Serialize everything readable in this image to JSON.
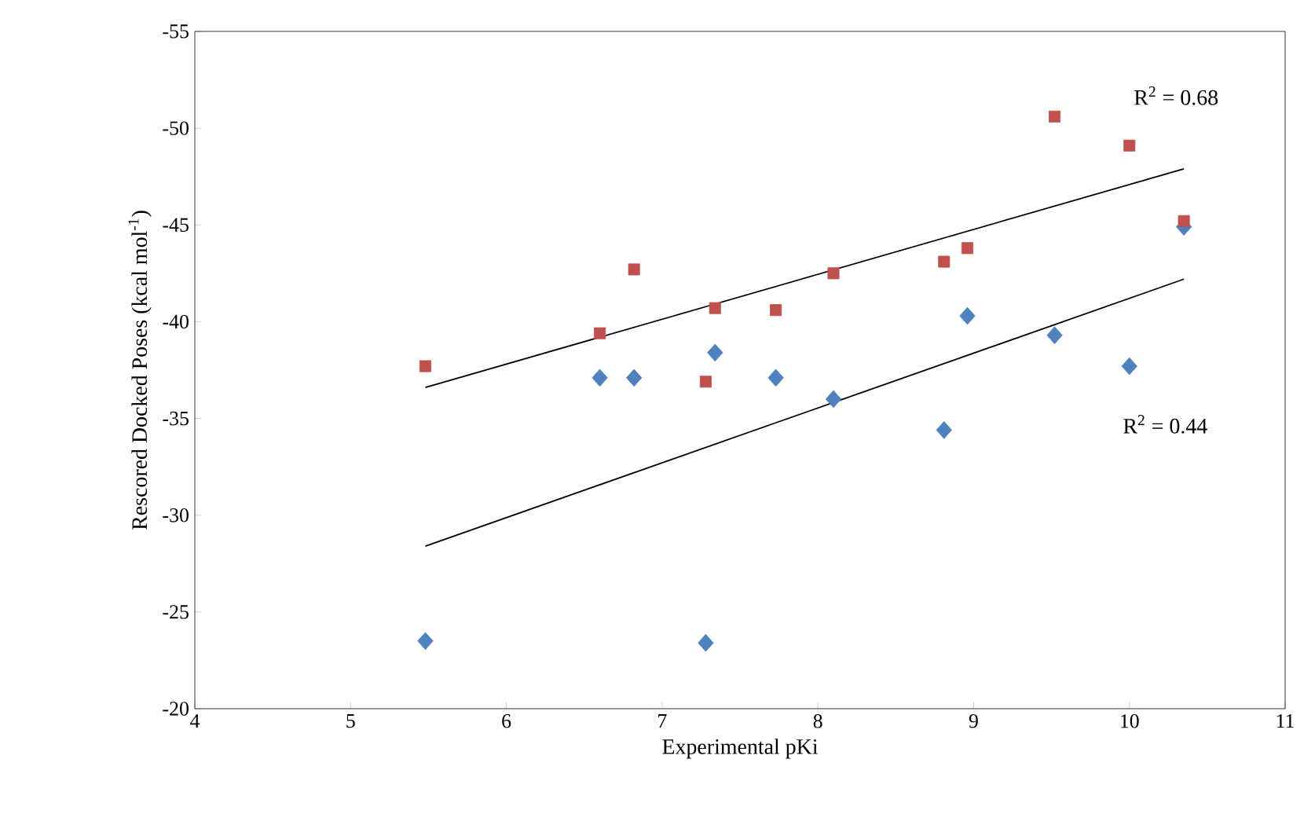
{
  "chart_data": {
    "type": "scatter",
    "xlabel": "Experimental pKi",
    "ylabel": "Rescored Docked Poses (kcal mol$^{-1}$)",
    "xlim": [
      4,
      11
    ],
    "xticks": [
      4,
      5,
      6,
      7,
      8,
      9,
      10,
      11
    ],
    "ylim": [
      -20,
      -55
    ],
    "yticks": [
      -20,
      -25,
      -30,
      -35,
      -40,
      -45,
      -50,
      -55
    ],
    "grid": false,
    "series": [
      {
        "marker": "diamond",
        "color": "#4f81bd",
        "x": [
          5.48,
          6.6,
          6.82,
          7.28,
          7.34,
          7.73,
          8.1,
          8.81,
          8.96,
          9.52,
          10.0,
          10.35
        ],
        "values": [
          -23.5,
          -37.1,
          -37.1,
          -23.4,
          -38.4,
          -37.1,
          -36.0,
          -34.4,
          -40.3,
          -39.3,
          -37.7,
          -44.9
        ]
      },
      {
        "marker": "square",
        "color": "#c0504d",
        "x": [
          5.48,
          6.6,
          6.82,
          7.28,
          7.34,
          7.73,
          8.1,
          8.81,
          8.96,
          9.52,
          10.0,
          10.35
        ],
        "values": [
          -37.7,
          -39.4,
          -42.7,
          -36.9,
          -40.7,
          -40.6,
          -42.5,
          -43.1,
          -43.8,
          -50.6,
          -49.1,
          -45.2
        ]
      },
      {
        "type": "line",
        "marker": "none",
        "color": "#000000",
        "x": [
          5.48,
          10.35
        ],
        "values": [
          -36.6,
          -47.9
        ]
      },
      {
        "type": "line",
        "marker": "none",
        "color": "#000000",
        "x": [
          5.48,
          10.35
        ],
        "values": [
          -28.4,
          -42.2
        ]
      }
    ],
    "annotations": [
      "R$^{2}$ = 0.68",
      "R$^{2}$ = 0.44"
    ]
  }
}
